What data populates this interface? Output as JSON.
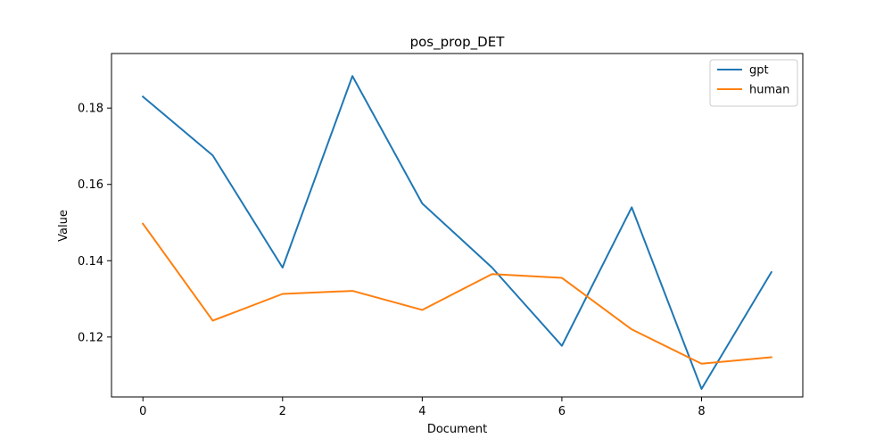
{
  "chart_data": {
    "type": "line",
    "title": "pos_prop_DET",
    "xlabel": "Document",
    "ylabel": "Value",
    "x": [
      0,
      1,
      2,
      3,
      4,
      5,
      6,
      7,
      8,
      9
    ],
    "xlim": [
      -0.45,
      9.45
    ],
    "ylim": [
      0.1043,
      0.1943
    ],
    "xticks": [
      0,
      2,
      4,
      6,
      8
    ],
    "yticks": [
      0.12,
      0.14,
      0.16,
      0.18
    ],
    "ytick_labels": [
      "0.12",
      "0.14",
      "0.16",
      "0.18"
    ],
    "grid": false,
    "legend_position": "top-right",
    "series": [
      {
        "name": "gpt",
        "color": "#1f77b4",
        "values": [
          0.183,
          0.1676,
          0.1382,
          0.1884,
          0.155,
          0.1382,
          0.1177,
          0.154,
          0.1064,
          0.137
        ]
      },
      {
        "name": "human",
        "color": "#ff7f0e",
        "values": [
          0.1497,
          0.1243,
          0.1313,
          0.1321,
          0.1271,
          0.1365,
          0.1355,
          0.122,
          0.113,
          0.1147
        ]
      }
    ]
  }
}
